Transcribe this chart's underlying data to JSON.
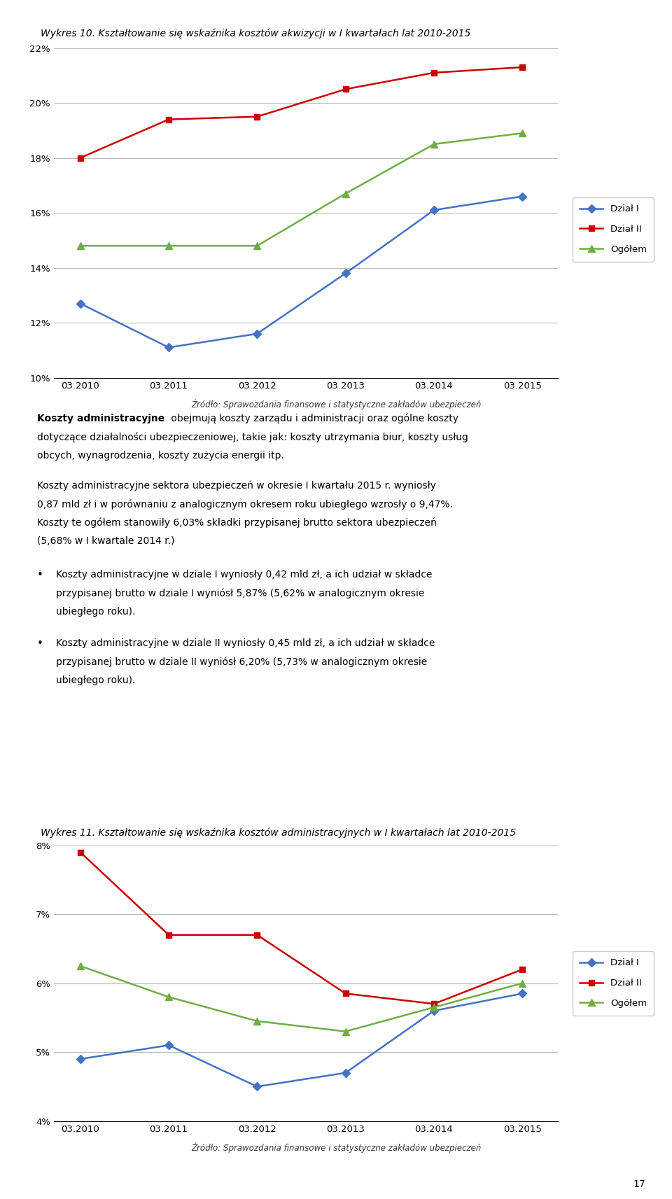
{
  "chart1": {
    "title": "Wykres 10. Kształtowanie się wskaźnika kosztów akwizycji w I kwartałach lat 2010-2015",
    "x_labels": [
      "03.2010",
      "03.2011",
      "03.2012",
      "03.2013",
      "03.2014",
      "03.2015"
    ],
    "dzial1": [
      12.7,
      11.1,
      11.6,
      13.8,
      16.1,
      16.6
    ],
    "dzial2": [
      18.0,
      19.4,
      19.5,
      20.5,
      21.1,
      21.3
    ],
    "ogoltem": [
      14.8,
      14.8,
      14.8,
      16.7,
      18.5,
      18.9
    ],
    "ylim": [
      10,
      22
    ],
    "yticks": [
      10,
      12,
      14,
      16,
      18,
      20,
      22
    ],
    "ytick_labels": [
      "10%",
      "12%",
      "14%",
      "16%",
      "18%",
      "20%",
      "22%"
    ],
    "color_dzial1": "#4472C4",
    "color_dzial2": "#CC0000",
    "color_ogoltem": "#70AD47",
    "source": "Źródło: Sprawozdania finansowe i statystyczne zakładów ubezpieczeń"
  },
  "chart2": {
    "title": "Wykres 11. Kształtowanie się wskaźnika kosztów administracyjnych w I kwartałach lat 2010-2015",
    "x_labels": [
      "03.2010",
      "03.2011",
      "03.2012",
      "03.2013",
      "03.2014",
      "03.2015"
    ],
    "dzial1": [
      4.9,
      5.1,
      4.5,
      4.7,
      5.6,
      5.85
    ],
    "dzial2": [
      7.9,
      6.7,
      6.7,
      5.85,
      5.7,
      6.2
    ],
    "ogoltem": [
      6.25,
      5.8,
      5.45,
      5.3,
      5.65,
      6.0
    ],
    "ylim": [
      4,
      8
    ],
    "yticks": [
      4,
      5,
      6,
      7,
      8
    ],
    "ytick_labels": [
      "4%",
      "5%",
      "6%",
      "7%",
      "8%"
    ],
    "color_dzial1": "#4472C4",
    "color_dzial2": "#CC0000",
    "color_ogoltem": "#70AD47",
    "source": "Źródło: Sprawozdania finansowe i statystyczne zakładów ubezpieczeń"
  },
  "legend_labels": [
    "Dział I",
    "Dział II",
    "Ogółem"
  ],
  "page_number": "17",
  "background_color": "#FFFFFF",
  "text_lines_para1": [
    [
      "bold",
      "Koszty administracyjne",
      "normal",
      " obejmują koszty zarządu i administracji oraz ogólne koszty"
    ],
    [
      "normal",
      "dotyczące działalności ubezpieczeniowej, takie jak: koszty utrzymania biur, koszty usług"
    ],
    [
      "normal",
      "obcych, wynagrodzenia, koszty zużycia energii itp."
    ]
  ],
  "text_lines_para2": [
    "Koszty administracyjne sektora ubezpieczeń w okresie I kwartału 2015 r. wyniosły",
    "0,87 mld zł i w porównaniu z analogicznym okresem roku ubiegłego wzrosły o 9,47%.",
    "Koszty te ogółem stanowiły 6,03% składki przypisanej brutto sektora ubezpieczeń",
    "(5,68% w I kwartale 2014 r.)"
  ],
  "bullet1_lines": [
    "Koszty administracyjne w dziale I wyniosły 0,42 mld zł, a ich udział w składce",
    "przypisanej brutto w dziale I wyniósł 5,87% (5,62% w analogicznym okresie",
    "ubiegłego roku)."
  ],
  "bullet2_lines": [
    "Koszty administracyjne w dziale II wyniosły 0,45 mld zł, a ich udział w składce",
    "przypisanej brutto w dziale II wyniósł 6,20% (5,73% w analogicznym okresie",
    "ubiegłego roku)."
  ]
}
